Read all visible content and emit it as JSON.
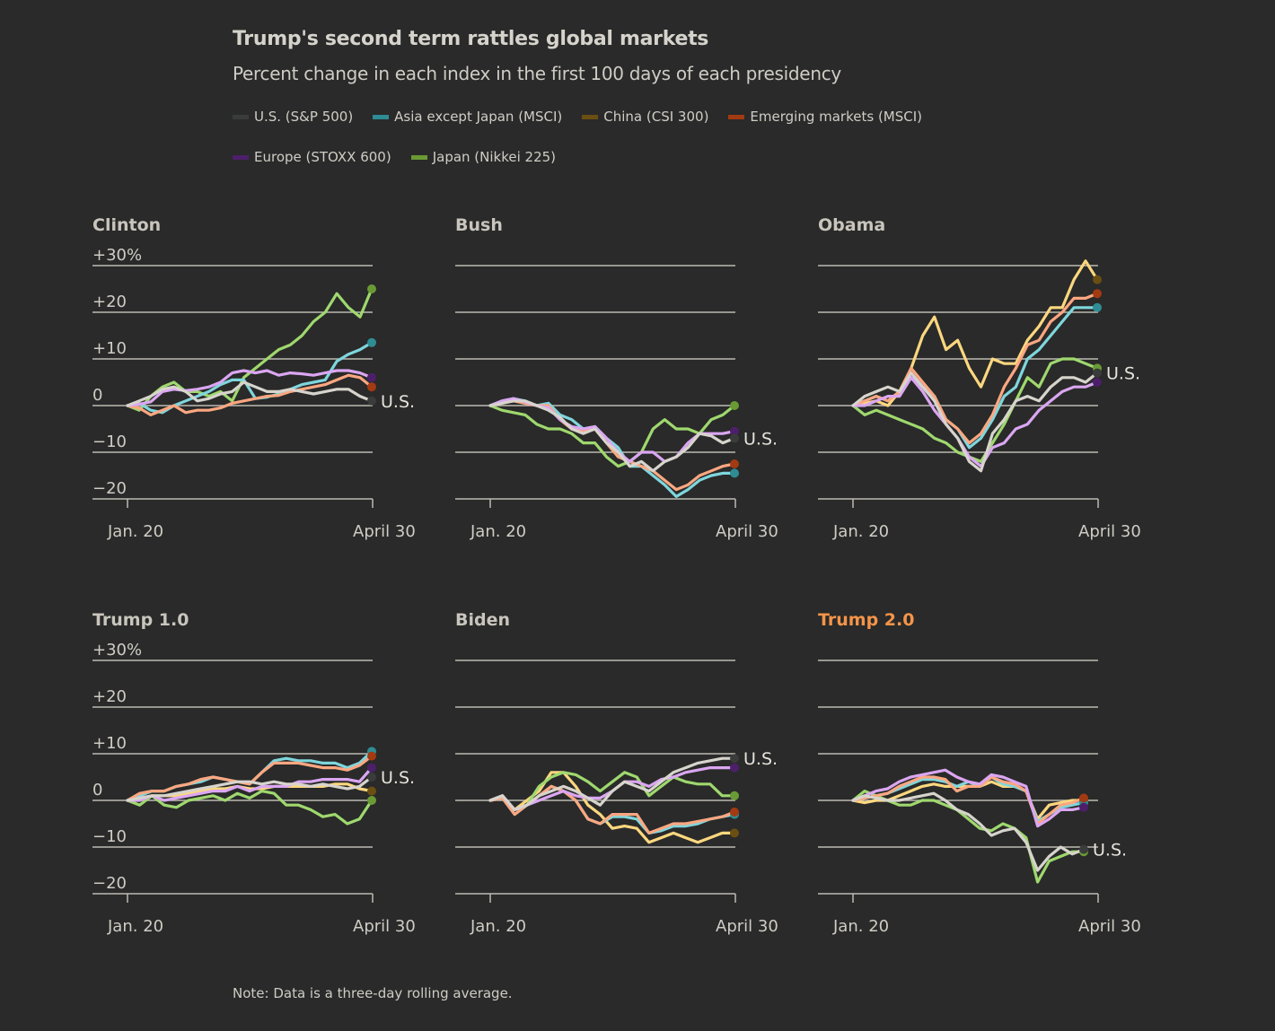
{
  "title": "Trump's second term rattles global markets",
  "subtitle": "Percent change in each index in the first 100 days of each presidency",
  "note": "Note: Data is a three-day rolling average.",
  "legend": [
    {
      "key": "us",
      "label": "U.S. (S&P 500)",
      "color": "#3a3c3b",
      "line_color": "#d7d4cd"
    },
    {
      "key": "asia",
      "label": "Asia except Japan (MSCI)",
      "color": "#2f8c94",
      "line_color": "#7fd6dd"
    },
    {
      "key": "china",
      "label": "China (CSI 300)",
      "color": "#6b4f12",
      "line_color": "#fcd77f"
    },
    {
      "key": "em",
      "label": "Emerging markets (MSCI)",
      "color": "#a33a12",
      "line_color": "#fca781"
    },
    {
      "key": "europe",
      "label": "Europe (STOXX 600)",
      "color": "#4d1f6b",
      "line_color": "#dba6f2"
    },
    {
      "key": "japan",
      "label": "Japan (Nikkei 225)",
      "color": "#6a9a35",
      "line_color": "#9fd86e"
    }
  ],
  "chart_data": {
    "type": "line",
    "title": "Trump's second term rattles global markets",
    "subtitle": "Percent change in each index in the first 100 days of each presidency",
    "xlabel": "",
    "ylabel": "Percent change",
    "x_tick_labels": [
      "Jan. 20",
      "April 30"
    ],
    "y_ticks": [
      30,
      20,
      10,
      0,
      -10,
      -20
    ],
    "y_tick_labels": [
      "+30%",
      "+20",
      "+10",
      "0",
      "−10",
      "−20"
    ],
    "ylim": [
      -20,
      30
    ],
    "xlim": [
      0,
      100
    ],
    "grid": true,
    "legend_position": "top",
    "end_label": "U.S.",
    "panels": [
      {
        "name": "Clinton",
        "highlight": false,
        "show_y_labels": true,
        "series": {
          "europe": [
            0,
            0.3,
            0.8,
            3,
            3.5,
            3.2,
            3.5,
            4,
            5,
            7,
            7.5,
            7,
            7.5,
            6.5,
            7,
            6.8,
            6.5,
            7,
            7.5,
            7.5,
            7,
            6
          ],
          "asia": [
            0,
            0.5,
            -1,
            -1.5,
            0,
            1,
            2,
            3,
            4.5,
            5.5,
            5.5,
            1.5,
            1.8,
            2.5,
            3.5,
            4.5,
            5,
            5.5,
            9.5,
            11,
            12,
            13.5
          ],
          "em": [
            0,
            -0.5,
            -2,
            -1,
            0,
            -1.5,
            -1,
            -1,
            -0.5,
            0.5,
            1,
            1.5,
            2,
            2.2,
            3,
            3.5,
            4,
            4.5,
            5.5,
            6.5,
            6,
            4
          ],
          "us": [
            0,
            1,
            2,
            3.5,
            4,
            3,
            1,
            1.5,
            2.5,
            3,
            5,
            4,
            3,
            3,
            3.5,
            3,
            2.5,
            3,
            3.5,
            3.5,
            2,
            1
          ],
          "japan": [
            0,
            -1,
            2,
            4,
            5,
            3,
            3,
            2,
            3,
            1,
            6,
            8,
            10,
            12,
            13,
            15,
            18,
            20,
            24,
            21,
            19,
            25
          ]
        }
      },
      {
        "name": "Bush",
        "highlight": false,
        "show_y_labels": false,
        "series": {
          "asia": [
            0,
            1,
            1.5,
            1,
            0,
            0.5,
            -2,
            -3,
            -5,
            -4.5,
            -7,
            -9,
            -13,
            -13,
            -15,
            -17,
            -19.5,
            -18,
            -16,
            -15,
            -14.5,
            -14.5
          ],
          "em": [
            0,
            0.5,
            1,
            0.5,
            0,
            0,
            -3,
            -5,
            -5.5,
            -5,
            -8,
            -11,
            -12,
            -13,
            -14,
            -16,
            -18,
            -17,
            -15,
            -14,
            -13,
            -12.5
          ],
          "europe": [
            0,
            1,
            1.5,
            0.8,
            0,
            -0.5,
            -3,
            -4.5,
            -5,
            -4.5,
            -7,
            -10,
            -12,
            -10,
            -10,
            -12,
            -11,
            -8,
            -6,
            -6,
            -6,
            -5.5
          ],
          "us": [
            0,
            0.5,
            1,
            1,
            0,
            -1,
            -2.5,
            -5,
            -6,
            -5,
            -8,
            -10,
            -13,
            -12,
            -14,
            -12,
            -11,
            -9,
            -6,
            -6.5,
            -8,
            -7
          ],
          "japan": [
            0,
            -1,
            -1.5,
            -2,
            -4,
            -5,
            -5,
            -6,
            -8,
            -8,
            -11,
            -13,
            -12,
            -10,
            -5,
            -3,
            -5,
            -5,
            -6,
            -3,
            -2,
            0
          ]
        }
      },
      {
        "name": "Obama",
        "highlight": false,
        "show_y_labels": false,
        "series": {
          "china": [
            0,
            0.5,
            1,
            0,
            3,
            8,
            15,
            19,
            12,
            14,
            8,
            4,
            10,
            9,
            9,
            14,
            17,
            21,
            21,
            27,
            31,
            27
          ],
          "em": [
            0,
            1,
            2,
            1,
            3,
            8,
            5,
            2,
            -3,
            -5,
            -8,
            -6,
            -2,
            4,
            8,
            13,
            14,
            18,
            20,
            23,
            23,
            24
          ],
          "asia": [
            0,
            1,
            2,
            1,
            3,
            6,
            4,
            2,
            -3,
            -5,
            -9,
            -7,
            -3,
            2,
            4,
            10,
            12,
            15,
            18,
            21,
            21,
            21
          ],
          "japan": [
            0,
            -2,
            -1,
            -2,
            -3,
            -4,
            -5,
            -7,
            -8,
            -10,
            -11,
            -12,
            -8,
            -4,
            1,
            6,
            4,
            9,
            10,
            10,
            9,
            8
          ],
          "us": [
            0,
            2,
            3,
            4,
            3,
            7,
            4,
            1,
            -4,
            -7,
            -12,
            -14,
            -6,
            -3,
            1,
            2,
            1,
            4,
            6,
            6,
            5,
            7
          ],
          "europe": [
            0,
            0,
            1,
            2,
            2,
            6,
            3,
            -1,
            -4,
            -7,
            -11,
            -13,
            -9,
            -8,
            -5,
            -4,
            -1,
            1,
            3,
            4,
            4,
            5
          ]
        }
      },
      {
        "name": "Trump 1.0",
        "highlight": false,
        "show_y_labels": true,
        "series": {
          "asia": [
            0,
            1,
            2,
            2,
            3,
            3.5,
            4,
            5,
            4.5,
            4,
            3.5,
            6,
            8.5,
            9,
            8.5,
            8.5,
            8,
            8,
            7,
            8,
            10.5
          ],
          "em": [
            0,
            1.5,
            2,
            2,
            3,
            3.5,
            4.5,
            5,
            4.5,
            4,
            3.5,
            6,
            8,
            8,
            8,
            7.5,
            7,
            7,
            6.5,
            7.5,
            9.5
          ],
          "europe": [
            0,
            0,
            1,
            0,
            0.5,
            1,
            1.5,
            2,
            2,
            3,
            2,
            3,
            3,
            3,
            4,
            4,
            4.5,
            4.5,
            4.5,
            4,
            7
          ],
          "us": [
            0,
            0.5,
            1,
            1,
            1.5,
            2,
            2.5,
            3,
            3.5,
            4,
            4,
            3.5,
            4,
            3.5,
            3.5,
            3,
            3.5,
            3,
            2.5,
            3,
            5
          ],
          "china": [
            0,
            0.5,
            1,
            1,
            1,
            1.5,
            2,
            2.5,
            2.5,
            3,
            2.5,
            2.5,
            3,
            3,
            3,
            3,
            3,
            3.5,
            3.5,
            2.5,
            2
          ],
          "japan": [
            0,
            -1,
            1,
            -1,
            -1.5,
            0,
            0.5,
            1,
            0,
            1.5,
            0.5,
            2,
            1.5,
            -1,
            -1,
            -2,
            -3.5,
            -3,
            -5,
            -4,
            0
          ]
        }
      },
      {
        "name": "Biden",
        "highlight": false,
        "show_y_labels": false,
        "series": {
          "us": [
            0,
            1,
            -2,
            -1,
            1,
            2,
            3,
            2,
            0.5,
            -1,
            2,
            4,
            3,
            2,
            4,
            6,
            7,
            8,
            8.5,
            9,
            9
          ],
          "europe": [
            0,
            1,
            -2,
            -1,
            0,
            1,
            2,
            1,
            0.5,
            0.5,
            2,
            4,
            4,
            3,
            4.5,
            5,
            6,
            6.5,
            7,
            7,
            7
          ],
          "japan": [
            0,
            0.5,
            -2,
            -1,
            3,
            5,
            6,
            5.5,
            4,
            2,
            4,
            6,
            5,
            1,
            3,
            5,
            4,
            3.5,
            3.5,
            1,
            1
          ],
          "em": [
            0,
            0.5,
            -3,
            -1,
            1,
            3,
            2,
            0,
            -4,
            -5,
            -3,
            -3,
            -3,
            -7,
            -6,
            -5,
            -5,
            -4.5,
            -4,
            -3.5,
            -2.5
          ],
          "asia": [
            0,
            0.5,
            -3,
            -1,
            1,
            3,
            2,
            0,
            -4,
            -5,
            -3.5,
            -3.5,
            -4,
            -7,
            -6.5,
            -5.5,
            -5.5,
            -5,
            -4,
            -3.5,
            -3
          ],
          "china": [
            0,
            1,
            -2,
            0,
            2,
            6,
            6,
            3,
            -1,
            -3,
            -6,
            -5.5,
            -6,
            -9,
            -8,
            -7,
            -8,
            -9,
            -8,
            -7,
            -7
          ]
        }
      },
      {
        "name": "Trump 2.0",
        "highlight": true,
        "show_y_labels": false,
        "series": {
          "europe": [
            0,
            1,
            2,
            2.5,
            4,
            5,
            5.5,
            6,
            6.5,
            5,
            4,
            3.5,
            5.5,
            5,
            4,
            3,
            -5.5,
            -4,
            -2,
            -2,
            -1.5
          ],
          "em": [
            0,
            0.5,
            1,
            1.5,
            3,
            4,
            5,
            5,
            4.5,
            2,
            3,
            3,
            5,
            4,
            3.5,
            2,
            -5,
            -3,
            -1,
            -0.5,
            0.5
          ],
          "asia": [
            0,
            0.5,
            1,
            1.5,
            2.5,
            3.5,
            4.5,
            4.5,
            4,
            3,
            4,
            3,
            5,
            3.5,
            3,
            2,
            -4.5,
            -3,
            -1.5,
            -1,
            -0.5
          ],
          "china": [
            0,
            -0.5,
            0,
            0,
            1,
            2,
            3,
            3.5,
            3,
            3,
            3,
            3,
            4,
            3,
            3,
            2,
            -4,
            -1,
            -0.5,
            0,
            0
          ],
          "japan": [
            0,
            2,
            1,
            0,
            -1,
            -1,
            0,
            0,
            -1,
            -2,
            -4,
            -6,
            -6.5,
            -5,
            -6,
            -8,
            -17.5,
            -13,
            -12,
            -11,
            -11
          ],
          "us": [
            0,
            1,
            0.5,
            0,
            0,
            0.5,
            1,
            1.5,
            0,
            -2,
            -3,
            -5,
            -7.5,
            -6.5,
            -6,
            -9,
            -15,
            -12,
            -10,
            -11.5,
            -10.5
          ]
        }
      }
    ]
  }
}
